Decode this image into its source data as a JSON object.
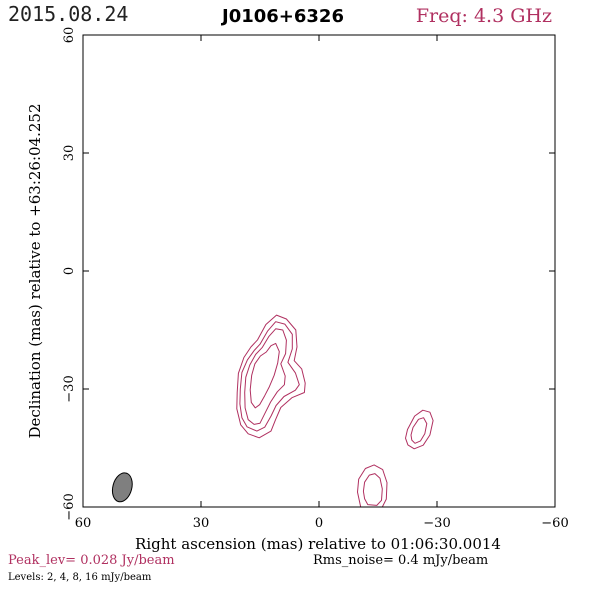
{
  "header": {
    "date": "2015.08.24",
    "source": "J0106+6326",
    "freq": "Freq: 4.3 GHz"
  },
  "footer": {
    "peak": "Peak_lev=  0.028 Jy/beam",
    "rms": "Rms_noise=   0.4 mJy/beam",
    "levels": "Levels:   2,    4,    8,   16 mJy/beam"
  },
  "colors": {
    "contour": "#b03060",
    "beam": "#7f7f7f",
    "axis": "#000000"
  },
  "chart_data": {
    "type": "contour",
    "title": "J0106+6326",
    "xlabel": "Right ascension (mas) relative to 01:06:30.0014",
    "ylabel": "Declination (mas) relative to +63:26:04.252",
    "xlim": [
      60,
      -60
    ],
    "ylim": [
      -60,
      60
    ],
    "x_ticks": [
      60,
      30,
      0,
      -30,
      -60
    ],
    "y_ticks": [
      60,
      30,
      0,
      -30,
      -60
    ],
    "x_tick_labels": [
      "60",
      "30",
      "0",
      "−30",
      "−60"
    ],
    "y_tick_labels": [
      "60",
      "30",
      "0",
      "−30",
      "−60"
    ],
    "levels_mjy_per_beam": [
      2,
      4,
      8,
      16
    ],
    "peak_jy_per_beam": 0.028,
    "rms_noise_mjy_per_beam": 0.4,
    "beam": {
      "center": [
        50,
        -55
      ],
      "major_mas": 7.5,
      "minor_mas": 4.8,
      "pa_deg": 15
    },
    "contours": [
      {
        "component": "core",
        "level_mjy": 2,
        "points": [
          [
            15.6,
            -17.5
          ],
          [
            13.5,
            -13.6
          ],
          [
            10.8,
            -11.2
          ],
          [
            8.3,
            -12.2
          ],
          [
            5.9,
            -15.0
          ],
          [
            5.6,
            -19.3
          ],
          [
            6.3,
            -22.8
          ],
          [
            4.4,
            -24.9
          ],
          [
            3.5,
            -28.5
          ],
          [
            3.7,
            -30.9
          ],
          [
            6.9,
            -32.2
          ],
          [
            9.7,
            -34.7
          ],
          [
            11.0,
            -37.7
          ],
          [
            12.2,
            -40.7
          ],
          [
            15.2,
            -42.4
          ],
          [
            18.0,
            -41.4
          ],
          [
            19.9,
            -39.1
          ],
          [
            20.9,
            -35.0
          ],
          [
            20.8,
            -30.9
          ],
          [
            20.5,
            -26.0
          ],
          [
            19.1,
            -22.0
          ],
          [
            17.3,
            -19.3
          ]
        ]
      },
      {
        "component": "core",
        "level_mjy": 4,
        "points": [
          [
            15.0,
            -18.6
          ],
          [
            13.1,
            -15.3
          ],
          [
            11.0,
            -12.9
          ],
          [
            8.7,
            -13.5
          ],
          [
            6.8,
            -16.1
          ],
          [
            6.8,
            -19.8
          ],
          [
            7.9,
            -23.2
          ],
          [
            6.0,
            -25.9
          ],
          [
            5.0,
            -28.9
          ],
          [
            6.0,
            -30.3
          ],
          [
            8.9,
            -31.9
          ],
          [
            10.9,
            -34.2
          ],
          [
            12.2,
            -36.9
          ],
          [
            13.8,
            -39.7
          ],
          [
            15.8,
            -40.7
          ],
          [
            18.3,
            -39.6
          ],
          [
            19.6,
            -37.3
          ],
          [
            20.1,
            -33.8
          ],
          [
            20.0,
            -30.0
          ],
          [
            19.6,
            -25.8
          ],
          [
            18.2,
            -22.6
          ],
          [
            16.4,
            -20.1
          ]
        ]
      },
      {
        "component": "core",
        "level_mjy": 8,
        "points": [
          [
            14.4,
            -19.4
          ],
          [
            12.7,
            -16.6
          ],
          [
            11.0,
            -14.7
          ],
          [
            9.2,
            -15.0
          ],
          [
            8.3,
            -17.6
          ],
          [
            8.5,
            -21.0
          ],
          [
            9.7,
            -23.6
          ],
          [
            8.6,
            -26.7
          ],
          [
            8.8,
            -28.9
          ],
          [
            10.6,
            -30.7
          ],
          [
            12.3,
            -33.3
          ],
          [
            13.6,
            -35.9
          ],
          [
            15.0,
            -38.7
          ],
          [
            16.5,
            -39.0
          ],
          [
            18.0,
            -37.8
          ],
          [
            18.8,
            -34.8
          ],
          [
            18.9,
            -30.9
          ],
          [
            18.6,
            -27.0
          ],
          [
            17.6,
            -23.9
          ],
          [
            16.1,
            -21.2
          ]
        ]
      },
      {
        "component": "core",
        "level_mjy": 16,
        "points": [
          [
            13.4,
            -20.6
          ],
          [
            12.2,
            -19.0
          ],
          [
            11.0,
            -18.4
          ],
          [
            10.1,
            -20.5
          ],
          [
            10.5,
            -23.4
          ],
          [
            11.4,
            -26.5
          ],
          [
            12.6,
            -29.4
          ],
          [
            13.8,
            -31.7
          ],
          [
            15.1,
            -34.0
          ],
          [
            16.2,
            -34.8
          ],
          [
            17.2,
            -33.4
          ],
          [
            17.5,
            -30.2
          ],
          [
            17.1,
            -26.5
          ],
          [
            16.3,
            -23.6
          ],
          [
            14.9,
            -21.6
          ]
        ]
      },
      {
        "component": "knot-a",
        "level_mjy": 2,
        "points": [
          [
            -22.0,
            -42.5
          ],
          [
            -22.5,
            -40.3
          ],
          [
            -24.3,
            -36.9
          ],
          [
            -26.4,
            -35.4
          ],
          [
            -28.2,
            -35.9
          ],
          [
            -29.0,
            -38.0
          ],
          [
            -28.2,
            -41.7
          ],
          [
            -26.5,
            -44.3
          ],
          [
            -24.2,
            -45.2
          ],
          [
            -22.6,
            -44.2
          ]
        ]
      },
      {
        "component": "knot-a",
        "level_mjy": 4,
        "points": [
          [
            -23.4,
            -41.7
          ],
          [
            -23.9,
            -39.8
          ],
          [
            -25.3,
            -37.7
          ],
          [
            -26.6,
            -37.3
          ],
          [
            -27.4,
            -38.8
          ],
          [
            -26.9,
            -41.4
          ],
          [
            -25.8,
            -43.2
          ],
          [
            -24.4,
            -43.8
          ],
          [
            -23.6,
            -43.0
          ]
        ]
      },
      {
        "component": "knot-b",
        "level_mjy": 2,
        "points": [
          [
            -9.8,
            -56.2
          ],
          [
            -10.1,
            -52.9
          ],
          [
            -11.8,
            -50.2
          ],
          [
            -14.0,
            -49.3
          ],
          [
            -16.2,
            -50.5
          ],
          [
            -17.3,
            -53.8
          ],
          [
            -17.1,
            -58.0
          ],
          [
            -16.1,
            -60.0
          ],
          [
            -10.6,
            -60.0
          ]
        ]
      },
      {
        "component": "knot-b",
        "level_mjy": 4,
        "points": [
          [
            -11.3,
            -56.0
          ],
          [
            -11.6,
            -53.7
          ],
          [
            -12.8,
            -51.9
          ],
          [
            -14.2,
            -51.5
          ],
          [
            -15.5,
            -52.7
          ],
          [
            -16.1,
            -55.4
          ],
          [
            -15.9,
            -58.3
          ],
          [
            -14.7,
            -59.6
          ],
          [
            -12.4,
            -59.4
          ],
          [
            -11.6,
            -57.9
          ]
        ]
      }
    ]
  }
}
